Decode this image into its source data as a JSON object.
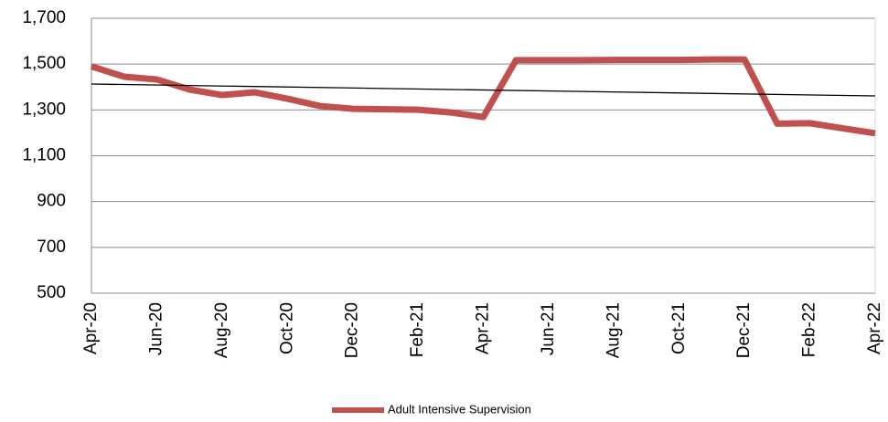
{
  "chart_data": {
    "type": "line",
    "categories": [
      "Apr-20",
      null,
      "Jun-20",
      null,
      "Aug-20",
      null,
      "Oct-20",
      null,
      "Dec-20",
      null,
      "Feb-21",
      null,
      "Apr-21",
      null,
      "Jun-21",
      null,
      "Aug-21",
      null,
      "Oct-21",
      null,
      "Dec-21",
      null,
      "Feb-22",
      null,
      "Apr-22"
    ],
    "series": [
      {
        "name": "Adult Intensive Supervision",
        "color": "#c0504d",
        "values": [
          1490,
          1445,
          1433,
          1389,
          1365,
          1377,
          1349,
          1317,
          1305,
          1303,
          1301,
          1289,
          1269,
          1517,
          1517,
          1517,
          1518,
          1518,
          1518,
          1520,
          1520,
          1240,
          1242,
          1220,
          1198
        ]
      }
    ],
    "trendline": {
      "start": 1413,
      "end": 1361,
      "color": "#000000"
    },
    "ylim": [
      500,
      1700
    ],
    "yticks": [
      500,
      700,
      900,
      {
        "value": 1100,
        "label": "1,100"
      },
      {
        "value": 1300,
        "label": "1,300"
      },
      {
        "value": 1500,
        "label": "1,500"
      },
      {
        "value": 1700,
        "label": "1,700"
      }
    ],
    "grid": true,
    "legend": "bottom"
  }
}
